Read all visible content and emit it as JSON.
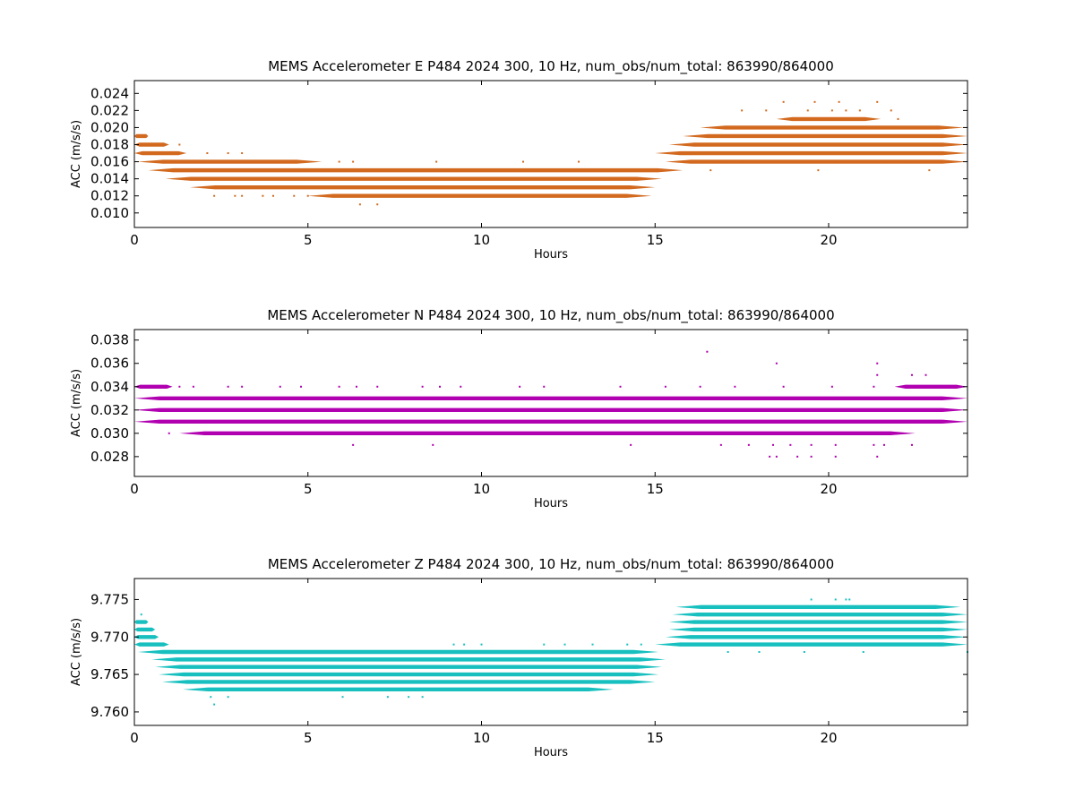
{
  "chart_data": [
    {
      "type": "scatter",
      "title": "MEMS Accelerometer E P484 2024 300, 10 Hz, num_obs/num_total: 863990/864000",
      "xlabel": "Hours",
      "ylabel": "ACC (m/s/s)",
      "xlim": [
        0,
        24
      ],
      "ylim": [
        0.0083,
        0.0255
      ],
      "xticks": [
        0,
        5,
        10,
        15,
        20
      ],
      "yticks": [
        0.01,
        0.012,
        0.014,
        0.016,
        0.018,
        0.02,
        0.022,
        0.024
      ],
      "yticklabels": [
        "0.010",
        "0.012",
        "0.014",
        "0.016",
        "0.018",
        "0.020",
        "0.022",
        "0.024"
      ],
      "color": "#d2691e",
      "grid": false,
      "bands": [
        {
          "y": 0.019,
          "x0": 0.0,
          "x1": 0.4
        },
        {
          "y": 0.018,
          "x0": 0.0,
          "x1": 1.0
        },
        {
          "y": 0.017,
          "x0": 0.0,
          "x1": 1.5
        },
        {
          "y": 0.016,
          "x0": 0.1,
          "x1": 5.4
        },
        {
          "y": 0.015,
          "x0": 0.4,
          "x1": 15.8
        },
        {
          "y": 0.014,
          "x0": 0.9,
          "x1": 15.2
        },
        {
          "y": 0.013,
          "x0": 1.6,
          "x1": 15.0
        },
        {
          "y": 0.012,
          "x0": 5.0,
          "x1": 14.9
        },
        {
          "y": 0.016,
          "x0": 15.3,
          "x1": 24.0
        },
        {
          "y": 0.017,
          "x0": 15.0,
          "x1": 24.0
        },
        {
          "y": 0.018,
          "x0": 15.4,
          "x1": 24.0
        },
        {
          "y": 0.019,
          "x0": 15.8,
          "x1": 24.0
        },
        {
          "y": 0.02,
          "x0": 16.3,
          "x1": 23.9
        },
        {
          "y": 0.021,
          "x0": 18.5,
          "x1": 21.5
        }
      ],
      "points": [
        {
          "x": 1.3,
          "y": 0.018
        },
        {
          "x": 2.1,
          "y": 0.017
        },
        {
          "x": 2.7,
          "y": 0.017
        },
        {
          "x": 3.1,
          "y": 0.017
        },
        {
          "x": 2.3,
          "y": 0.012
        },
        {
          "x": 2.9,
          "y": 0.012
        },
        {
          "x": 3.1,
          "y": 0.012
        },
        {
          "x": 3.7,
          "y": 0.012
        },
        {
          "x": 4.0,
          "y": 0.012
        },
        {
          "x": 4.6,
          "y": 0.012
        },
        {
          "x": 5.0,
          "y": 0.012
        },
        {
          "x": 6.5,
          "y": 0.011
        },
        {
          "x": 7.0,
          "y": 0.011
        },
        {
          "x": 5.9,
          "y": 0.016
        },
        {
          "x": 6.3,
          "y": 0.016
        },
        {
          "x": 8.7,
          "y": 0.016
        },
        {
          "x": 11.2,
          "y": 0.016
        },
        {
          "x": 12.8,
          "y": 0.016
        },
        {
          "x": 16.6,
          "y": 0.015
        },
        {
          "x": 16.9,
          "y": 0.016
        },
        {
          "x": 17.5,
          "y": 0.016
        },
        {
          "x": 17.5,
          "y": 0.022
        },
        {
          "x": 18.2,
          "y": 0.022
        },
        {
          "x": 18.7,
          "y": 0.023
        },
        {
          "x": 19.4,
          "y": 0.022
        },
        {
          "x": 19.6,
          "y": 0.023
        },
        {
          "x": 20.1,
          "y": 0.022
        },
        {
          "x": 20.3,
          "y": 0.023
        },
        {
          "x": 20.5,
          "y": 0.022
        },
        {
          "x": 20.9,
          "y": 0.022
        },
        {
          "x": 21.4,
          "y": 0.023
        },
        {
          "x": 21.8,
          "y": 0.022
        },
        {
          "x": 22.0,
          "y": 0.021
        },
        {
          "x": 19.7,
          "y": 0.015
        },
        {
          "x": 20.2,
          "y": 0.016
        },
        {
          "x": 21.7,
          "y": 0.016
        },
        {
          "x": 22.9,
          "y": 0.015
        },
        {
          "x": 23.3,
          "y": 0.016
        },
        {
          "x": 22.3,
          "y": 0.016
        }
      ]
    },
    {
      "type": "scatter",
      "title": "MEMS Accelerometer N P484 2024 300, 10 Hz, num_obs/num_total: 863990/864000",
      "xlabel": "Hours",
      "ylabel": "ACC (m/s/s)",
      "xlim": [
        0,
        24
      ],
      "ylim": [
        0.0263,
        0.0389
      ],
      "xticks": [
        0,
        5,
        10,
        15,
        20
      ],
      "yticks": [
        0.028,
        0.03,
        0.032,
        0.034,
        0.036,
        0.038
      ],
      "yticklabels": [
        "0.028",
        "0.030",
        "0.032",
        "0.034",
        "0.036",
        "0.038"
      ],
      "color": "#b000b0",
      "grid": false,
      "bands": [
        {
          "y": 0.034,
          "x0": 0.0,
          "x1": 1.1
        },
        {
          "y": 0.033,
          "x0": 0.0,
          "x1": 24.0
        },
        {
          "y": 0.032,
          "x0": 0.0,
          "x1": 24.0
        },
        {
          "y": 0.031,
          "x0": 0.0,
          "x1": 24.0
        },
        {
          "y": 0.03,
          "x0": 1.3,
          "x1": 22.5
        },
        {
          "y": 0.034,
          "x0": 21.9,
          "x1": 24.0
        }
      ],
      "points": [
        {
          "x": 1.0,
          "y": 0.03
        },
        {
          "x": 1.3,
          "y": 0.034
        },
        {
          "x": 1.7,
          "y": 0.034
        },
        {
          "x": 2.7,
          "y": 0.034
        },
        {
          "x": 3.1,
          "y": 0.034
        },
        {
          "x": 4.2,
          "y": 0.034
        },
        {
          "x": 4.8,
          "y": 0.034
        },
        {
          "x": 5.9,
          "y": 0.034
        },
        {
          "x": 6.4,
          "y": 0.034
        },
        {
          "x": 7.0,
          "y": 0.034
        },
        {
          "x": 8.3,
          "y": 0.034
        },
        {
          "x": 8.8,
          "y": 0.034
        },
        {
          "x": 9.4,
          "y": 0.034
        },
        {
          "x": 11.1,
          "y": 0.034
        },
        {
          "x": 11.8,
          "y": 0.034
        },
        {
          "x": 14.0,
          "y": 0.034
        },
        {
          "x": 15.3,
          "y": 0.034
        },
        {
          "x": 16.3,
          "y": 0.034
        },
        {
          "x": 17.3,
          "y": 0.034
        },
        {
          "x": 18.7,
          "y": 0.034
        },
        {
          "x": 20.1,
          "y": 0.034
        },
        {
          "x": 21.3,
          "y": 0.034
        },
        {
          "x": 6.3,
          "y": 0.029
        },
        {
          "x": 8.6,
          "y": 0.029
        },
        {
          "x": 14.3,
          "y": 0.029
        },
        {
          "x": 16.9,
          "y": 0.029
        },
        {
          "x": 17.7,
          "y": 0.029
        },
        {
          "x": 18.4,
          "y": 0.029
        },
        {
          "x": 18.9,
          "y": 0.029
        },
        {
          "x": 19.5,
          "y": 0.029
        },
        {
          "x": 20.2,
          "y": 0.029
        },
        {
          "x": 21.3,
          "y": 0.029
        },
        {
          "x": 21.6,
          "y": 0.029
        },
        {
          "x": 22.4,
          "y": 0.029
        },
        {
          "x": 18.3,
          "y": 0.028
        },
        {
          "x": 18.5,
          "y": 0.028
        },
        {
          "x": 19.1,
          "y": 0.028
        },
        {
          "x": 19.5,
          "y": 0.028
        },
        {
          "x": 20.2,
          "y": 0.028
        },
        {
          "x": 21.4,
          "y": 0.028
        },
        {
          "x": 16.5,
          "y": 0.037
        },
        {
          "x": 18.5,
          "y": 0.036
        },
        {
          "x": 21.4,
          "y": 0.036
        },
        {
          "x": 21.4,
          "y": 0.035
        },
        {
          "x": 22.4,
          "y": 0.035
        },
        {
          "x": 22.8,
          "y": 0.035
        }
      ]
    },
    {
      "type": "scatter",
      "title": "MEMS Accelerometer Z P484 2024 300, 10 Hz, num_obs/num_total: 863990/864000",
      "xlabel": "Hours",
      "ylabel": "ACC (m/s/s)",
      "xlim": [
        0,
        24
      ],
      "ylim": [
        9.7582,
        9.7778
      ],
      "xticks": [
        0,
        5,
        10,
        15,
        20
      ],
      "yticks": [
        9.76,
        9.765,
        9.77,
        9.775
      ],
      "yticklabels": [
        "9.760",
        "9.765",
        "9.770",
        "9.775"
      ],
      "color": "#17bfbf",
      "grid": false,
      "bands": [
        {
          "y": 9.772,
          "x0": 0.0,
          "x1": 0.4
        },
        {
          "y": 9.771,
          "x0": 0.0,
          "x1": 0.6
        },
        {
          "y": 9.77,
          "x0": 0.0,
          "x1": 0.7
        },
        {
          "y": 9.769,
          "x0": 0.0,
          "x1": 1.0
        },
        {
          "y": 9.768,
          "x0": 0.1,
          "x1": 15.1
        },
        {
          "y": 9.767,
          "x0": 0.5,
          "x1": 15.3
        },
        {
          "y": 9.766,
          "x0": 0.6,
          "x1": 15.2
        },
        {
          "y": 9.765,
          "x0": 0.7,
          "x1": 15.1
        },
        {
          "y": 9.764,
          "x0": 0.8,
          "x1": 15.0
        },
        {
          "y": 9.763,
          "x0": 1.4,
          "x1": 13.8
        },
        {
          "y": 9.769,
          "x0": 15.0,
          "x1": 24.0
        },
        {
          "y": 9.77,
          "x0": 15.3,
          "x1": 24.0
        },
        {
          "y": 9.771,
          "x0": 15.4,
          "x1": 24.0
        },
        {
          "y": 9.772,
          "x0": 15.4,
          "x1": 24.0
        },
        {
          "y": 9.773,
          "x0": 15.5,
          "x1": 24.0
        },
        {
          "y": 9.774,
          "x0": 15.6,
          "x1": 23.8
        }
      ],
      "points": [
        {
          "x": 0.2,
          "y": 9.773
        },
        {
          "x": 2.2,
          "y": 9.762
        },
        {
          "x": 2.3,
          "y": 9.761
        },
        {
          "x": 2.7,
          "y": 9.762
        },
        {
          "x": 6.0,
          "y": 9.762
        },
        {
          "x": 7.3,
          "y": 9.762
        },
        {
          "x": 7.9,
          "y": 9.762
        },
        {
          "x": 8.3,
          "y": 9.762
        },
        {
          "x": 9.2,
          "y": 9.769
        },
        {
          "x": 9.5,
          "y": 9.769
        },
        {
          "x": 10.0,
          "y": 9.769
        },
        {
          "x": 11.8,
          "y": 9.769
        },
        {
          "x": 12.4,
          "y": 9.769
        },
        {
          "x": 13.2,
          "y": 9.769
        },
        {
          "x": 14.2,
          "y": 9.769
        },
        {
          "x": 14.6,
          "y": 9.769
        },
        {
          "x": 17.1,
          "y": 9.768
        },
        {
          "x": 18.0,
          "y": 9.768
        },
        {
          "x": 19.3,
          "y": 9.768
        },
        {
          "x": 21.0,
          "y": 9.768
        },
        {
          "x": 24.0,
          "y": 9.768
        },
        {
          "x": 19.5,
          "y": 9.775
        },
        {
          "x": 20.2,
          "y": 9.775
        },
        {
          "x": 20.5,
          "y": 9.775
        },
        {
          "x": 20.6,
          "y": 9.775
        }
      ]
    }
  ]
}
